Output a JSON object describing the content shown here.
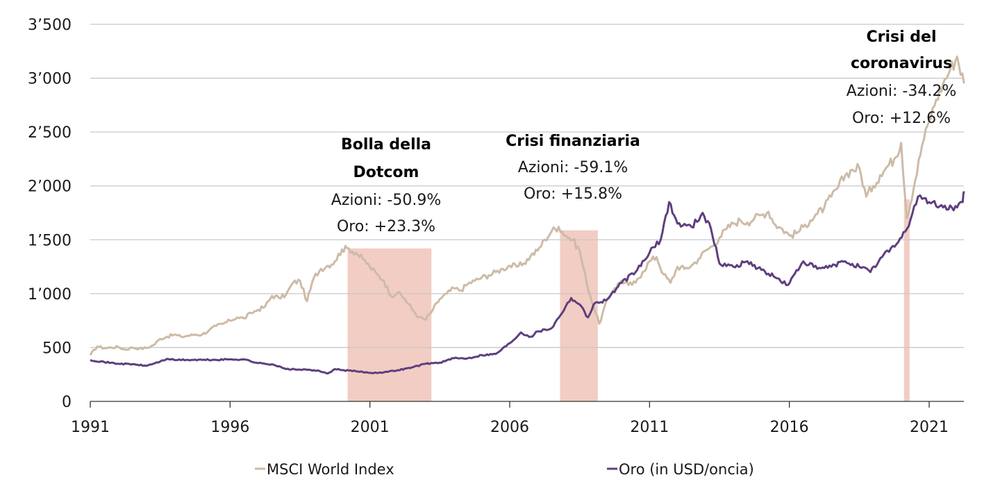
{
  "chart_data": {
    "type": "line",
    "title": "",
    "xlabel": "",
    "ylabel": "",
    "xlim": [
      1991,
      2022.25
    ],
    "ylim": [
      0,
      3500
    ],
    "grid": true,
    "legend_position": "bottom",
    "yticks": [
      0,
      500,
      1000,
      1500,
      2000,
      2500,
      3000,
      3500
    ],
    "ytick_labels": [
      "0",
      "500",
      "1’000",
      "1’500",
      "2’000",
      "2’500",
      "3’000",
      "3’500"
    ],
    "xticks": [
      1991,
      1996,
      2001,
      2006,
      2011,
      2016,
      2021
    ],
    "xtick_labels": [
      "1991",
      "1996",
      "2001",
      "2006",
      "2011",
      "2016",
      "2021"
    ],
    "colors": {
      "msci": "#CDBBA7",
      "gold": "#5E3F7E",
      "shade": "#F2CDC4",
      "grid": "#C8C8C8",
      "axis": "#333333"
    },
    "series": [
      {
        "name": "MSCI World Index",
        "key": "msci",
        "x": [
          1991.0,
          1991.25,
          1991.5,
          1991.75,
          1992.0,
          1992.25,
          1992.5,
          1992.75,
          1993.0,
          1993.25,
          1993.5,
          1993.75,
          1994.0,
          1994.25,
          1994.5,
          1994.75,
          1995.0,
          1995.25,
          1995.5,
          1995.75,
          1996.0,
          1996.25,
          1996.5,
          1996.75,
          1997.0,
          1997.25,
          1997.5,
          1997.75,
          1998.0,
          1998.25,
          1998.5,
          1998.75,
          1999.0,
          1999.25,
          1999.5,
          1999.75,
          2000.0,
          2000.25,
          2000.5,
          2000.75,
          2001.0,
          2001.25,
          2001.5,
          2001.75,
          2002.0,
          2002.25,
          2002.5,
          2002.75,
          2003.0,
          2003.25,
          2003.5,
          2003.75,
          2004.0,
          2004.25,
          2004.5,
          2004.75,
          2005.0,
          2005.25,
          2005.5,
          2005.75,
          2006.0,
          2006.25,
          2006.5,
          2006.75,
          2007.0,
          2007.25,
          2007.5,
          2007.75,
          2008.0,
          2008.25,
          2008.5,
          2008.75,
          2009.0,
          2009.2,
          2009.5,
          2009.75,
          2010.0,
          2010.25,
          2010.5,
          2010.75,
          2011.0,
          2011.25,
          2011.5,
          2011.75,
          2012.0,
          2012.25,
          2012.5,
          2012.75,
          2013.0,
          2013.25,
          2013.5,
          2013.75,
          2014.0,
          2014.25,
          2014.5,
          2014.75,
          2015.0,
          2015.25,
          2015.5,
          2015.75,
          2016.0,
          2016.25,
          2016.5,
          2016.75,
          2017.0,
          2017.25,
          2017.5,
          2017.75,
          2018.0,
          2018.25,
          2018.5,
          2018.75,
          2019.0,
          2019.25,
          2019.5,
          2019.75,
          2020.0,
          2020.2,
          2020.5,
          2020.75,
          2021.0,
          2021.25,
          2021.5,
          2021.75,
          2022.0,
          2022.25
        ],
        "values": [
          430,
          510,
          495,
          500,
          505,
          480,
          500,
          490,
          495,
          520,
          580,
          600,
          620,
          600,
          610,
          620,
          620,
          660,
          700,
          720,
          750,
          780,
          770,
          820,
          850,
          880,
          980,
          960,
          990,
          1100,
          1120,
          930,
          1150,
          1230,
          1260,
          1300,
          1410,
          1420,
          1380,
          1320,
          1250,
          1180,
          1120,
          980,
          1010,
          950,
          860,
          780,
          760,
          850,
          950,
          1000,
          1050,
          1030,
          1090,
          1120,
          1150,
          1170,
          1200,
          1230,
          1260,
          1250,
          1280,
          1350,
          1400,
          1500,
          1580,
          1620,
          1540,
          1500,
          1400,
          1100,
          880,
          720,
          950,
          1050,
          1120,
          1080,
          1100,
          1200,
          1300,
          1340,
          1180,
          1100,
          1250,
          1230,
          1260,
          1320,
          1400,
          1440,
          1520,
          1600,
          1650,
          1680,
          1660,
          1700,
          1730,
          1760,
          1640,
          1600,
          1540,
          1560,
          1620,
          1680,
          1740,
          1800,
          1900,
          1990,
          2100,
          2150,
          2170,
          1900,
          2000,
          2100,
          2180,
          2250,
          2400,
          1700,
          2050,
          2380,
          2600,
          2800,
          2950,
          3080,
          3200,
          2950
        ],
        "label_color": "#CDBBA7"
      },
      {
        "name": "Oro (in USD/oncia)",
        "key": "gold",
        "x": [
          1991.0,
          1991.5,
          1992.0,
          1992.5,
          1993.0,
          1993.5,
          1993.75,
          1994.0,
          1994.5,
          1995.0,
          1995.5,
          1996.0,
          1996.5,
          1997.0,
          1997.5,
          1998.0,
          1998.5,
          1999.0,
          1999.5,
          1999.75,
          2000.0,
          2000.5,
          2001.0,
          2001.5,
          2002.0,
          2002.5,
          2003.0,
          2003.5,
          2004.0,
          2004.5,
          2005.0,
          2005.5,
          2006.0,
          2006.4,
          2006.75,
          2007.0,
          2007.5,
          2008.0,
          2008.2,
          2008.5,
          2008.8,
          2009.0,
          2009.5,
          2010.0,
          2010.5,
          2011.0,
          2011.4,
          2011.7,
          2012.0,
          2012.5,
          2012.9,
          2013.2,
          2013.5,
          2014.0,
          2014.5,
          2015.0,
          2015.5,
          2015.95,
          2016.5,
          2017.0,
          2017.5,
          2018.0,
          2018.5,
          2018.9,
          2019.5,
          2019.9,
          2020.2,
          2020.6,
          2020.75,
          2021.0,
          2021.5,
          2022.0,
          2022.2,
          2022.25
        ],
        "values": [
          385,
          365,
          350,
          345,
          330,
          370,
          395,
          385,
          385,
          385,
          385,
          390,
          390,
          355,
          345,
          300,
          295,
          290,
          260,
          300,
          290,
          280,
          265,
          270,
          290,
          315,
          350,
          360,
          400,
          400,
          430,
          440,
          540,
          640,
          600,
          650,
          680,
          880,
          960,
          900,
          780,
          900,
          950,
          1100,
          1200,
          1380,
          1500,
          1850,
          1650,
          1620,
          1750,
          1600,
          1280,
          1250,
          1300,
          1220,
          1150,
          1080,
          1300,
          1230,
          1250,
          1300,
          1250,
          1200,
          1400,
          1480,
          1600,
          1900,
          1880,
          1850,
          1800,
          1800,
          1850,
          1950
        ]
      }
    ],
    "shaded_periods": [
      {
        "name": "Bolla della Dotcom",
        "start": 2000.2,
        "end": 2003.2
      },
      {
        "name": "Crisi finanziaria",
        "start": 2007.8,
        "end": 2009.15
      },
      {
        "name": "Crisi del coronavirus",
        "start": 2020.1,
        "end": 2020.3
      }
    ],
    "annotations": [
      {
        "title_lines": [
          "Bolla della",
          "Dotcom"
        ],
        "lines": [
          "Azioni:  -50.9%",
          "Oro: +23.3%"
        ],
        "anchor_x": 2001.6
      },
      {
        "title_lines": [
          "Crisi finanziaria"
        ],
        "lines": [
          "Azioni:  -59.1%",
          "Oro: +15.8%"
        ],
        "anchor_x": 2008.2
      },
      {
        "title_lines": [
          "Crisi del",
          "coronavirus"
        ],
        "lines": [
          "Azioni:  -34.2%",
          "Oro: +12.6%"
        ],
        "anchor_x": 2020.0
      }
    ],
    "legend": [
      {
        "label": "MSCI World Index",
        "key": "msci"
      },
      {
        "label": "Oro (in USD/oncia)",
        "key": "gold"
      }
    ]
  }
}
